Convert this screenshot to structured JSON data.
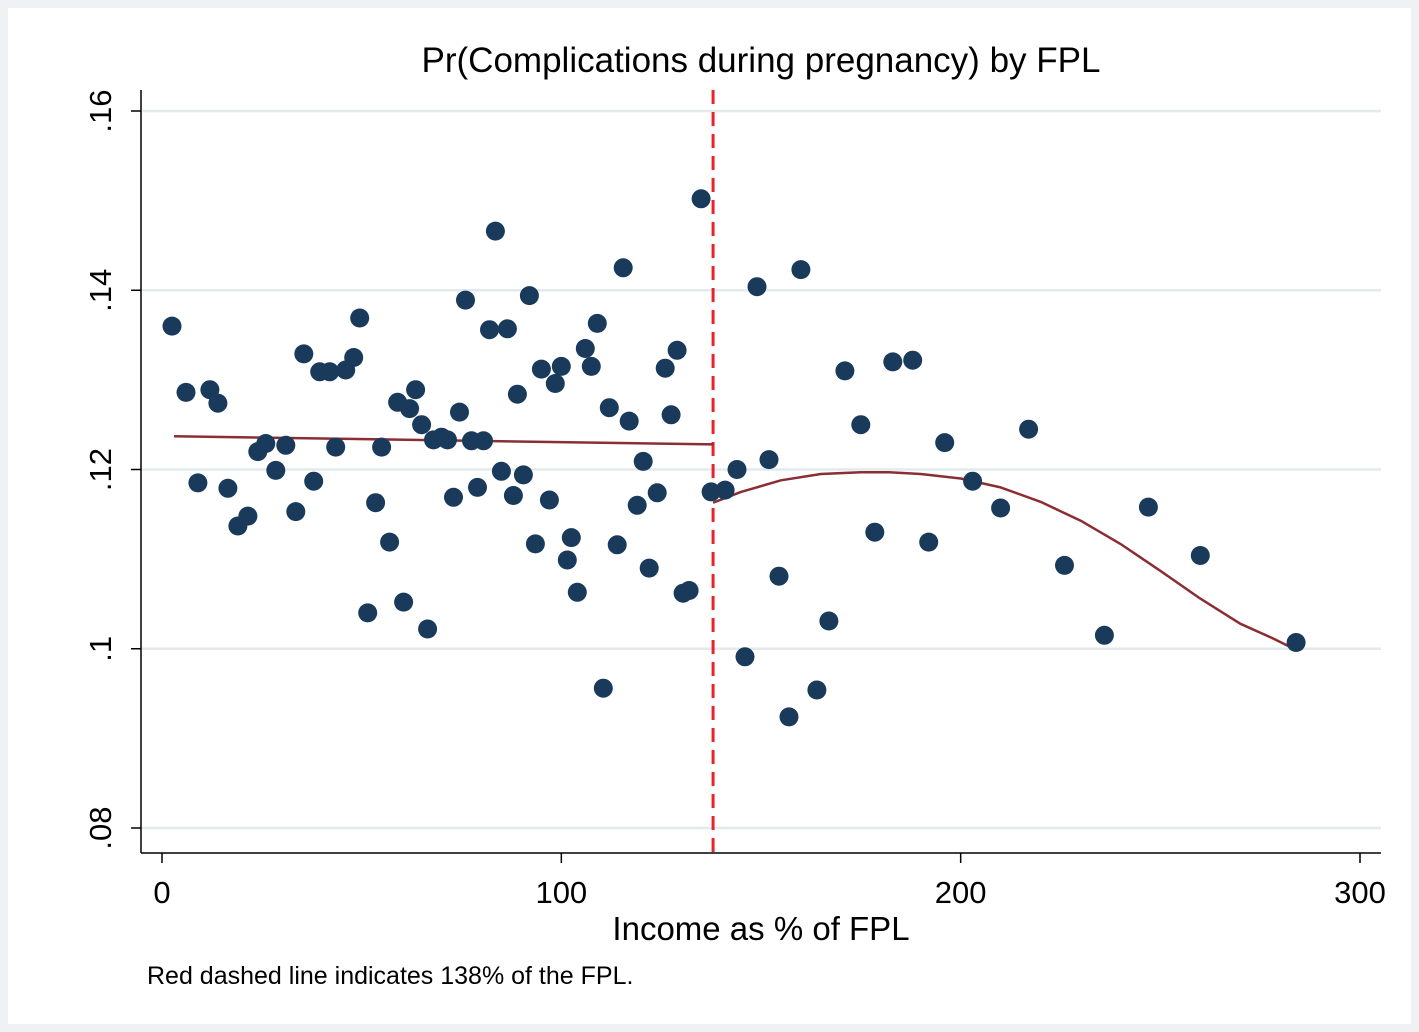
{
  "chart_data": {
    "type": "scatter",
    "title": "Pr(Complications during pregnancy) by FPL",
    "xlabel": "Income as % of FPL",
    "ylabel": "",
    "note": "Red dashed line indicates 138% of the FPL.",
    "xlim": [
      -5,
      306
    ],
    "ylim": [
      0.078,
      0.162
    ],
    "x_ticks": [
      0,
      100,
      200,
      300
    ],
    "x_tick_labels": [
      "0",
      "100",
      "200",
      "300"
    ],
    "y_ticks": [
      0.08,
      0.1,
      0.12,
      0.14,
      0.16
    ],
    "y_tick_labels": [
      ".08",
      ".1",
      ".12",
      ".14",
      ".16"
    ],
    "grid": "horizontal",
    "legend": "none",
    "cutoff": 138,
    "colors": {
      "points": "#1a3a5c",
      "fit": "#8b2e33",
      "cutoff": "#e8232a",
      "grid": "#e3eaee"
    },
    "points": [
      [
        2.5,
        0.136
      ],
      [
        6,
        0.1286
      ],
      [
        9,
        0.1185
      ],
      [
        12,
        0.1289
      ],
      [
        14,
        0.1274
      ],
      [
        16.5,
        0.1179
      ],
      [
        19,
        0.1137
      ],
      [
        21.5,
        0.1148
      ],
      [
        24,
        0.122
      ],
      [
        26,
        0.1229
      ],
      [
        28.5,
        0.1199
      ],
      [
        31,
        0.1227
      ],
      [
        33.5,
        0.1153
      ],
      [
        35.5,
        0.1329
      ],
      [
        38,
        0.1187
      ],
      [
        39.5,
        0.1309
      ],
      [
        42,
        0.1309
      ],
      [
        43.5,
        0.1225
      ],
      [
        46,
        0.1311
      ],
      [
        48,
        0.1325
      ],
      [
        49.5,
        0.1369
      ],
      [
        51.5,
        0.104
      ],
      [
        53.5,
        0.1163
      ],
      [
        55,
        0.1225
      ],
      [
        57,
        0.1119
      ],
      [
        59,
        0.1275
      ],
      [
        60.5,
        0.1052
      ],
      [
        62,
        0.1268
      ],
      [
        63.5,
        0.1289
      ],
      [
        65,
        0.125
      ],
      [
        66.5,
        0.1022
      ],
      [
        68,
        0.1233
      ],
      [
        70,
        0.1236
      ],
      [
        71.5,
        0.1233
      ],
      [
        73,
        0.1169
      ],
      [
        74.5,
        0.1264
      ],
      [
        76,
        0.1389
      ],
      [
        77.5,
        0.1232
      ],
      [
        79,
        0.118
      ],
      [
        80.5,
        0.1232
      ],
      [
        82,
        0.1356
      ],
      [
        83.5,
        0.1466
      ],
      [
        85,
        0.1198
      ],
      [
        86.5,
        0.1357
      ],
      [
        88,
        0.1171
      ],
      [
        89,
        0.1284
      ],
      [
        90.5,
        0.1194
      ],
      [
        92,
        0.1394
      ],
      [
        93.5,
        0.1117
      ],
      [
        95,
        0.1312
      ],
      [
        97,
        0.1166
      ],
      [
        98.5,
        0.1296
      ],
      [
        100,
        0.1315
      ],
      [
        101.5,
        0.1099
      ],
      [
        102.5,
        0.1124
      ],
      [
        104,
        0.1063
      ],
      [
        106,
        0.1335
      ],
      [
        107.5,
        0.1315
      ],
      [
        109,
        0.1363
      ],
      [
        110.5,
        0.0956
      ],
      [
        112,
        0.1269
      ],
      [
        114,
        0.1116
      ],
      [
        115.5,
        0.1425
      ],
      [
        117,
        0.1254
      ],
      [
        119,
        0.116
      ],
      [
        120.5,
        0.1209
      ],
      [
        122,
        0.109
      ],
      [
        124,
        0.1174
      ],
      [
        126,
        0.1313
      ],
      [
        127.5,
        0.1261
      ],
      [
        129,
        0.1333
      ],
      [
        130.5,
        0.1062
      ],
      [
        132,
        0.1065
      ],
      [
        135,
        0.1502
      ],
      [
        137.5,
        0.1175
      ],
      [
        141,
        0.1177
      ],
      [
        144,
        0.12
      ],
      [
        146,
        0.0991
      ],
      [
        149,
        0.1404
      ],
      [
        152,
        0.1211
      ],
      [
        154.5,
        0.1081
      ],
      [
        157,
        0.0924
      ],
      [
        160,
        0.1423
      ],
      [
        164,
        0.0954
      ],
      [
        167,
        0.1031
      ],
      [
        171,
        0.131
      ],
      [
        175,
        0.125
      ],
      [
        178.5,
        0.113
      ],
      [
        183,
        0.132
      ],
      [
        188,
        0.1322
      ],
      [
        192,
        0.1119
      ],
      [
        196,
        0.123
      ],
      [
        203,
        0.1187
      ],
      [
        210,
        0.1157
      ],
      [
        217,
        0.1245
      ],
      [
        226,
        0.1093
      ],
      [
        236,
        0.1015
      ],
      [
        247,
        0.1158
      ],
      [
        260,
        0.1104
      ],
      [
        284,
        0.1007
      ]
    ],
    "fit_left": [
      [
        3,
        0.1237
      ],
      [
        138,
        0.1228
      ]
    ],
    "fit_right": [
      [
        138,
        0.1163
      ],
      [
        145,
        0.1175
      ],
      [
        155,
        0.1188
      ],
      [
        165,
        0.1195
      ],
      [
        175,
        0.1197
      ],
      [
        182,
        0.1197
      ],
      [
        190,
        0.1195
      ],
      [
        200,
        0.119
      ],
      [
        210,
        0.118
      ],
      [
        220,
        0.1164
      ],
      [
        230,
        0.1143
      ],
      [
        240,
        0.1117
      ],
      [
        250,
        0.1087
      ],
      [
        260,
        0.1056
      ],
      [
        270,
        0.1028
      ],
      [
        278,
        0.1012
      ],
      [
        283,
        0.1001
      ]
    ]
  }
}
